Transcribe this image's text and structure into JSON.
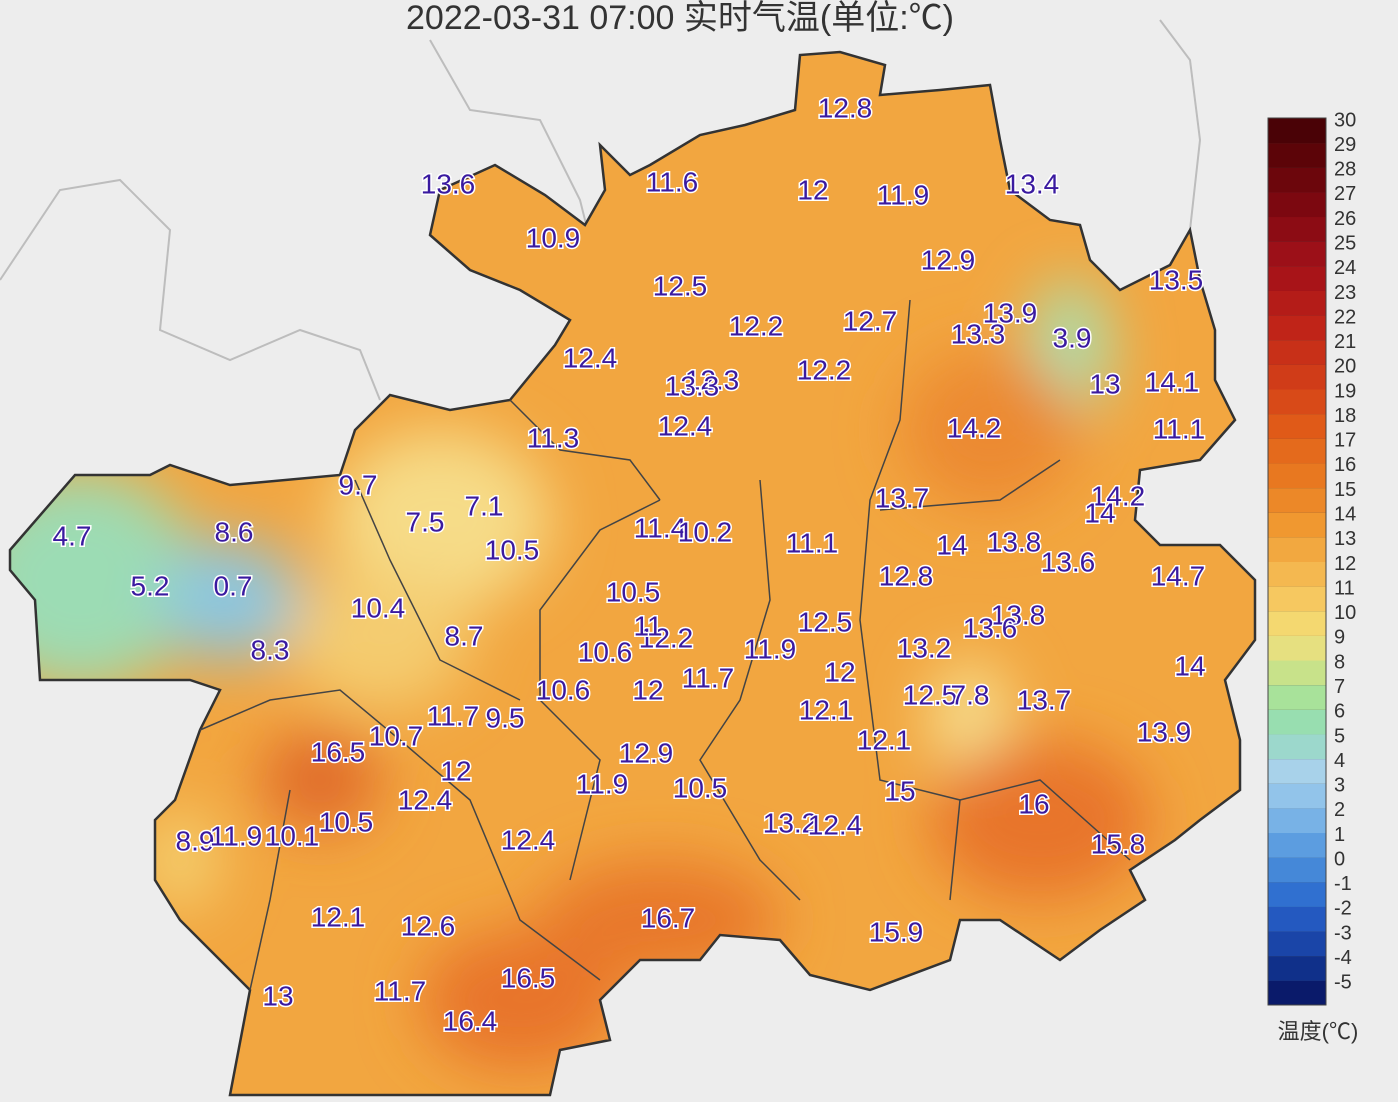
{
  "title": "2022-03-31 07:00 实时气温(单位:℃)",
  "stations": [
    12.8,
    13.6,
    11.6,
    12,
    11.9,
    13.4,
    10.9,
    12.9,
    13.5,
    12.5,
    12.2,
    12.7,
    13.9,
    13.3,
    3.9,
    12.4,
    12.3,
    13.3,
    12.2,
    13,
    14.1,
    12.4,
    14.2,
    11.1,
    11.3,
    9.7,
    13.7,
    14.2,
    14,
    7.1,
    7.5,
    4.7,
    8.6,
    11.4,
    10.2,
    11.1,
    14,
    13.8,
    10.5,
    13.6,
    14.7,
    12.8,
    5.2,
    0.7,
    10.5,
    10.4,
    12.5,
    13.8,
    13.6,
    8.7,
    8.3,
    12.2,
    11,
    10.6,
    11.9,
    13.2,
    14,
    12,
    11.7,
    12,
    10.6,
    12.5,
    7.8,
    13.7,
    12.1,
    11.7,
    9.5,
    10.7,
    13.9,
    12.1,
    16.5,
    12.9,
    12,
    15,
    11.9,
    10.5,
    12.4,
    16,
    10.5,
    13.2,
    12.4,
    8.9,
    11.9,
    10.1,
    12.4,
    15.8,
    16.7,
    12.1,
    12.6,
    15.9,
    16.5,
    13,
    11.7,
    16.4
  ],
  "colorbar": {
    "title": "温度(℃)",
    "ticks": [
      -5,
      -4,
      -3,
      -2,
      -1,
      0,
      1,
      2,
      3,
      4,
      5,
      6,
      7,
      8,
      9,
      10,
      11,
      12,
      13,
      14,
      15,
      16,
      17,
      18,
      19,
      20,
      21,
      22,
      23,
      24,
      25,
      26,
      27,
      28,
      29,
      30
    ],
    "colors": [
      "#0a1a6a",
      "#10308a",
      "#1a45a8",
      "#2459c0",
      "#3070d0",
      "#4588d8",
      "#5c9de0",
      "#78b2e6",
      "#92c4ea",
      "#a8d2ea",
      "#9cd8cc",
      "#98deb0",
      "#a8e29a",
      "#c8e28a",
      "#e6e080",
      "#f4d870",
      "#f6c860",
      "#f4b850",
      "#f2a840",
      "#f09830",
      "#ec8828",
      "#e87820",
      "#e46a1c",
      "#e05a18",
      "#d84a18",
      "#d03c18",
      "#c83018",
      "#c02418",
      "#b41c18",
      "#a81418",
      "#9c1018",
      "#8c0c14",
      "#7c0810",
      "#6c060c",
      "#5c0408",
      "#4a0206"
    ]
  }
}
